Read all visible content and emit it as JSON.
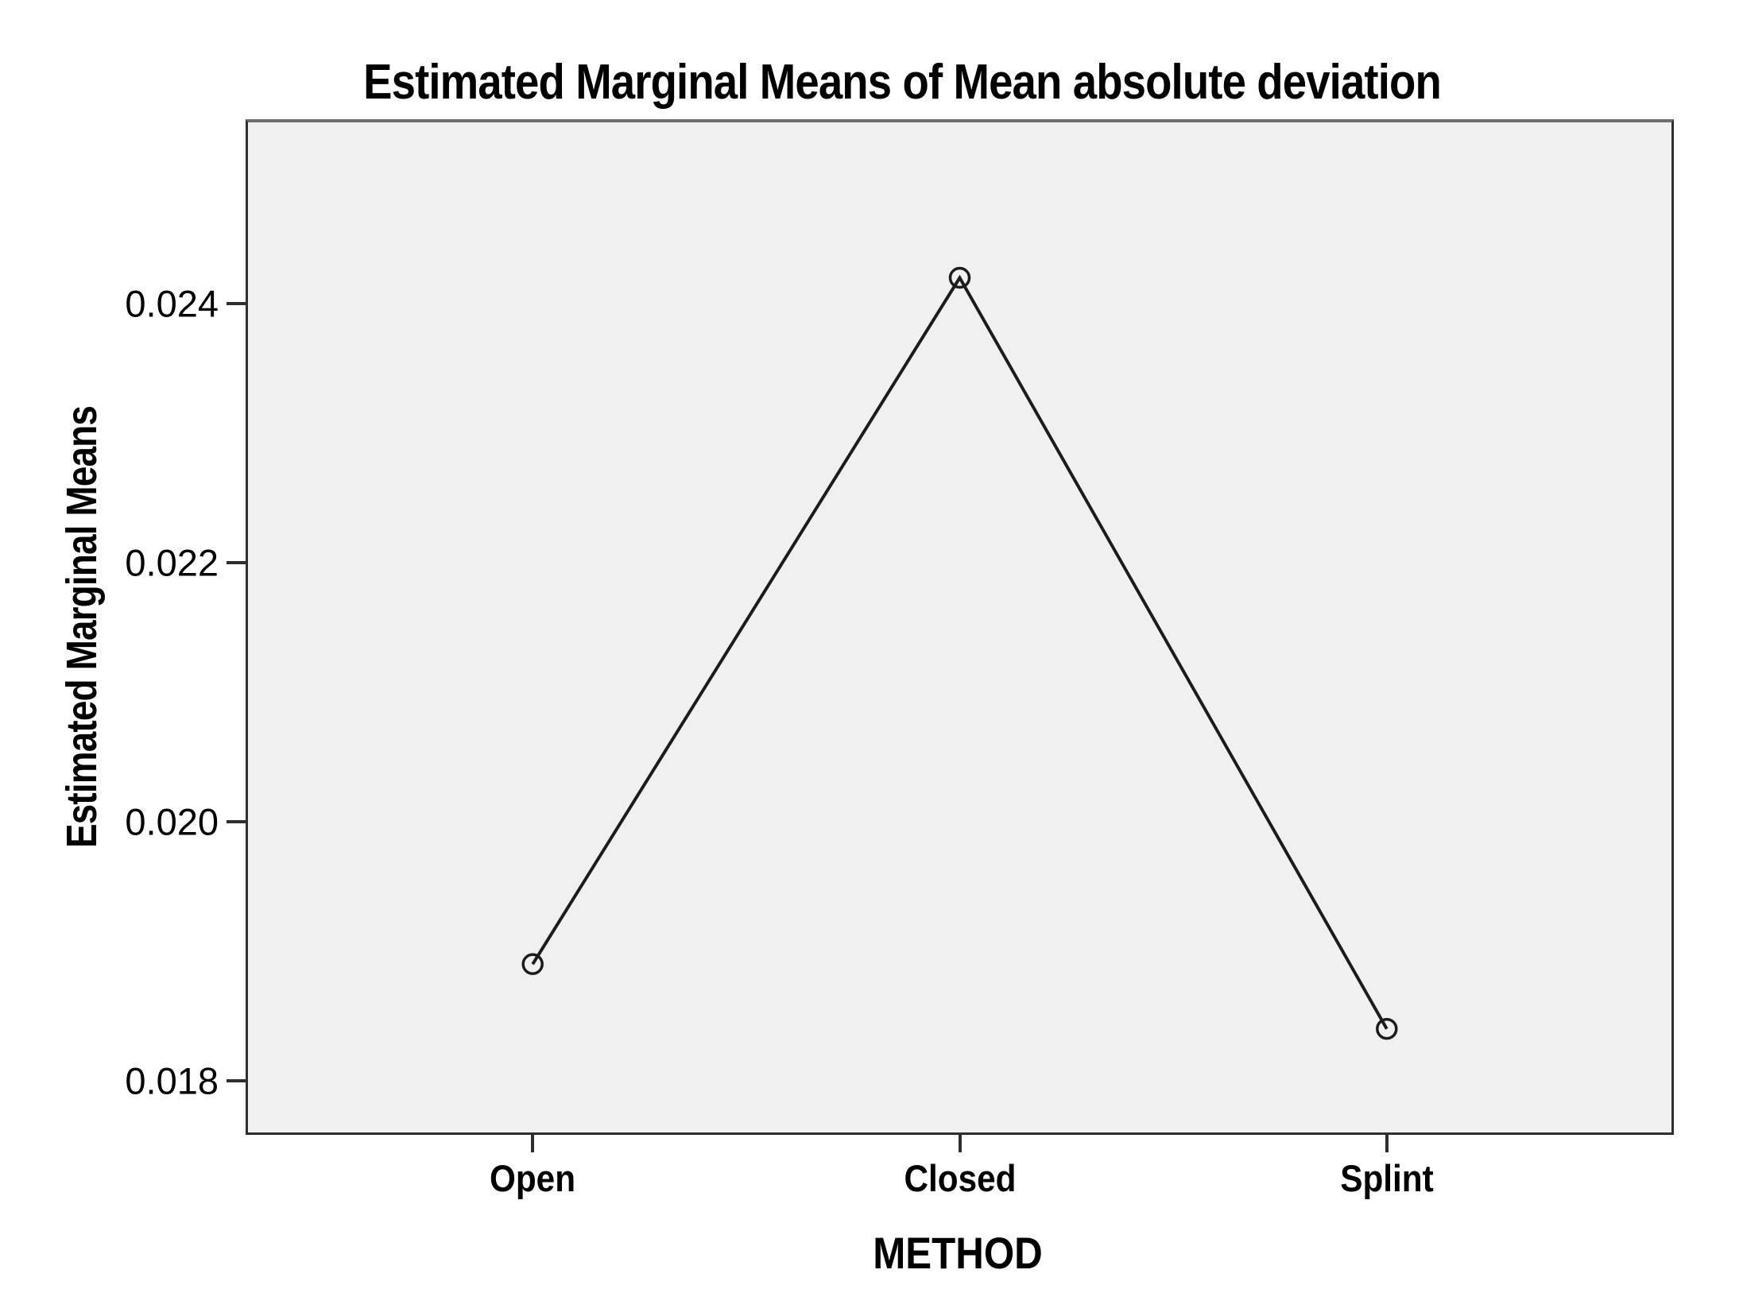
{
  "chart_data": {
    "type": "line",
    "title": "Estimated Marginal Means of Mean absolute deviation",
    "xlabel": "METHOD",
    "ylabel": "Estimated Marginal Means",
    "categories": [
      "Open",
      "Closed",
      "Splint"
    ],
    "series": [
      {
        "name": "Estimated Marginal Means",
        "values": [
          0.0189,
          0.0242,
          0.0184
        ]
      }
    ],
    "yticks": [
      0.018,
      0.02,
      0.022,
      0.024
    ],
    "ytick_labels": [
      "0.018",
      "0.020",
      "0.022",
      "0.024"
    ],
    "ylim": [
      0.0176,
      0.0254
    ],
    "grid": false,
    "legend": "none",
    "marker": "open-circle",
    "colors": {
      "line": "#1c1c1c",
      "marker_stroke": "#1c1c1c",
      "plot_background": "#f0f0f0",
      "page_background": "#ffffff",
      "text": "#000000",
      "axis_border": "#2e2e2e"
    }
  }
}
